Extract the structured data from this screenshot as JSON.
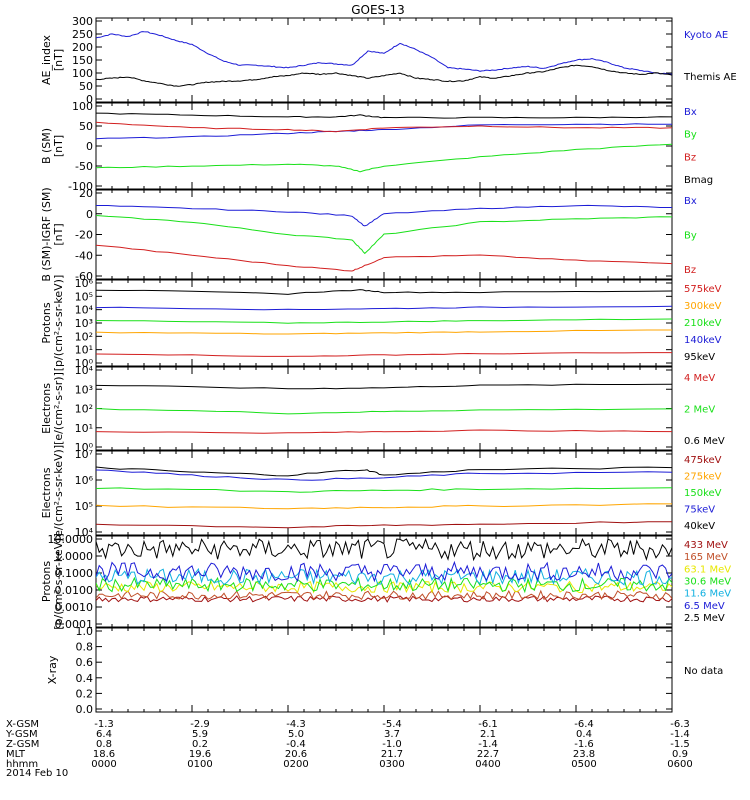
{
  "title": "GOES-13",
  "date_label": "2014 Feb 10",
  "colors": {
    "black": "#000000",
    "blue": "#1c1cd6",
    "green": "#19e019",
    "red": "#d21f1f",
    "orange": "#ffa500",
    "dark_red": "#a01010",
    "yellow": "#e8e800",
    "cyan": "#10b0e0",
    "brown": "#c0502a"
  },
  "chart_data": [
    {
      "type": "line",
      "ylabel": "AE_index\n[nT]",
      "yscale": "linear",
      "ylim": [
        0,
        300
      ],
      "yticks": [
        "0",
        "50",
        "100",
        "150",
        "200",
        "250",
        "300"
      ],
      "series": [
        {
          "name": "Kyoto AE",
          "color": "#1c1cd6",
          "x": [
            0,
            10,
            20,
            30,
            40,
            50,
            60,
            70,
            80,
            90,
            100,
            110,
            120,
            130,
            140,
            150,
            160,
            170,
            180,
            190,
            200,
            210,
            220,
            230,
            240,
            250,
            260,
            270,
            280,
            290,
            300,
            310,
            320,
            330,
            340,
            350,
            360
          ],
          "y": [
            235,
            250,
            240,
            260,
            245,
            225,
            210,
            175,
            145,
            130,
            130,
            125,
            120,
            130,
            140,
            135,
            130,
            185,
            175,
            215,
            190,
            160,
            120,
            115,
            108,
            112,
            120,
            125,
            118,
            135,
            150,
            155,
            140,
            120,
            110,
            100,
            95
          ]
        },
        {
          "name": "Themis AE",
          "color": "#000000",
          "x": [
            0,
            10,
            20,
            30,
            40,
            50,
            60,
            70,
            80,
            90,
            100,
            110,
            120,
            130,
            140,
            150,
            160,
            170,
            180,
            190,
            200,
            210,
            220,
            230,
            240,
            250,
            260,
            270,
            280,
            290,
            300,
            310,
            320,
            330,
            340,
            350,
            360
          ],
          "y": [
            75,
            80,
            85,
            70,
            60,
            50,
            55,
            65,
            68,
            70,
            75,
            85,
            90,
            100,
            95,
            100,
            90,
            80,
            90,
            100,
            80,
            75,
            68,
            70,
            85,
            80,
            90,
            100,
            105,
            120,
            130,
            125,
            110,
            100,
            95,
            100,
            92
          ]
        }
      ]
    },
    {
      "type": "line",
      "ylabel": "B (SM)\n[nT]",
      "yscale": "linear",
      "ylim": [
        -110,
        110
      ],
      "yticks": [
        "-100",
        "-50",
        "0",
        "50",
        "100"
      ],
      "series": [
        {
          "name": "Bx",
          "color": "#1c1cd6",
          "x": [
            0,
            60,
            120,
            150,
            180,
            240,
            300,
            360
          ],
          "y": [
            20,
            25,
            35,
            40,
            45,
            58,
            60,
            60
          ]
        },
        {
          "name": "By",
          "color": "#19e019",
          "x": [
            0,
            60,
            120,
            150,
            165,
            180,
            240,
            300,
            360
          ],
          "y": [
            -60,
            -55,
            -50,
            -55,
            -70,
            -55,
            -30,
            -10,
            5
          ]
        },
        {
          "name": "Bz",
          "color": "#d21f1f",
          "x": [
            0,
            60,
            120,
            150,
            180,
            240,
            300,
            360
          ],
          "y": [
            65,
            50,
            45,
            40,
            50,
            55,
            50,
            50
          ]
        },
        {
          "name": "Bmag",
          "color": "#000000",
          "x": [
            0,
            60,
            120,
            150,
            165,
            180,
            240,
            300,
            360
          ],
          "y": [
            90,
            85,
            80,
            80,
            85,
            78,
            78,
            78,
            80
          ]
        }
      ]
    },
    {
      "type": "line",
      "ylabel": "B (SM)-IGRF (SM)\n[nT]",
      "yscale": "linear",
      "ylim": [
        -60,
        20
      ],
      "yticks": [
        "-60",
        "-40",
        "-20",
        "0",
        "20"
      ],
      "series": [
        {
          "name": "Bx",
          "color": "#1c1cd6",
          "x": [
            0,
            60,
            120,
            160,
            168,
            180,
            240,
            300,
            360
          ],
          "y": [
            8,
            5,
            2,
            -2,
            -12,
            0,
            5,
            8,
            6
          ]
        },
        {
          "name": "By",
          "color": "#19e019",
          "x": [
            0,
            60,
            120,
            160,
            168,
            180,
            240,
            300,
            360
          ],
          "y": [
            -2,
            -8,
            -20,
            -25,
            -38,
            -20,
            -8,
            -5,
            -3
          ]
        },
        {
          "name": "Bz",
          "color": "#d21f1f",
          "x": [
            0,
            60,
            120,
            160,
            168,
            180,
            240,
            300,
            360
          ],
          "y": [
            -30,
            -40,
            -50,
            -55,
            -50,
            -42,
            -40,
            -45,
            -48
          ]
        }
      ]
    },
    {
      "type": "line",
      "ylabel": "Protons\n[p/(cm²-s-sr-keV)]",
      "yscale": "log",
      "ylim": [
        1,
        1000000
      ],
      "yticks": [
        "10⁰",
        "10¹",
        "10²",
        "10³",
        "10⁴",
        "10⁵",
        "10⁶"
      ],
      "series": [
        {
          "name": "575keV",
          "color": "#d21f1f",
          "x": [
            0,
            120,
            180,
            240,
            360
          ],
          "y": [
            5,
            3,
            4,
            5,
            6
          ]
        },
        {
          "name": "300keV",
          "color": "#ffa500",
          "x": [
            0,
            120,
            180,
            240,
            360
          ],
          "y": [
            200,
            150,
            180,
            220,
            300
          ]
        },
        {
          "name": "210keV",
          "color": "#19e019",
          "x": [
            0,
            120,
            180,
            240,
            360
          ],
          "y": [
            1500,
            1000,
            1200,
            1500,
            2000
          ]
        },
        {
          "name": "140keV",
          "color": "#1c1cd6",
          "x": [
            0,
            120,
            180,
            240,
            360
          ],
          "y": [
            15000,
            10000,
            12000,
            15000,
            18000
          ]
        },
        {
          "name": "95keV",
          "color": "#000000",
          "x": [
            0,
            120,
            165,
            180,
            240,
            360
          ],
          "y": [
            300000,
            150000,
            300000,
            200000,
            200000,
            250000
          ]
        }
      ]
    },
    {
      "type": "line",
      "ylabel": "Electrons\n[e/(cm²-s-sr)]",
      "yscale": "log",
      "ylim": [
        1,
        100000
      ],
      "yticks": [
        "10⁰",
        "10¹",
        "10²",
        "10³",
        "10⁴"
      ],
      "series": [
        {
          "name": "4 MeV",
          "color": "#d21f1f",
          "x": [
            0,
            120,
            180,
            240,
            360
          ],
          "y": [
            10,
            8,
            10,
            12,
            10
          ]
        },
        {
          "name": "2 MeV",
          "color": "#19e019",
          "x": [
            0,
            120,
            180,
            240,
            360
          ],
          "y": [
            300,
            150,
            200,
            250,
            300
          ]
        },
        {
          "name": "0.6 MeV",
          "color": "#000000",
          "x": [
            0,
            120,
            180,
            240,
            360
          ],
          "y": [
            10000,
            6000,
            7000,
            10000,
            12000
          ]
        }
      ]
    },
    {
      "type": "line",
      "ylabel": "Electrons\n[e/(cm²-s-sr-keV)]",
      "yscale": "log",
      "ylim": [
        10000,
        10000000
      ],
      "yticks": [
        "10⁴",
        "10⁵",
        "10⁶",
        "10⁷"
      ],
      "series": [
        {
          "name": "475keV",
          "color": "#a01010",
          "x": [
            0,
            120,
            180,
            240,
            360
          ],
          "y": [
            20000,
            15000,
            18000,
            20000,
            25000
          ]
        },
        {
          "name": "275keV",
          "color": "#ffa500",
          "x": [
            0,
            120,
            180,
            240,
            360
          ],
          "y": [
            100000,
            80000,
            90000,
            100000,
            120000
          ]
        },
        {
          "name": "150keV",
          "color": "#19e019",
          "x": [
            0,
            120,
            180,
            240,
            360
          ],
          "y": [
            500000,
            350000,
            400000,
            450000,
            500000
          ]
        },
        {
          "name": "75keV",
          "color": "#1c1cd6",
          "x": [
            0,
            60,
            120,
            180,
            240,
            360
          ],
          "y": [
            2500000,
            1500000,
            1000000,
            1200000,
            1800000,
            2000000
          ]
        },
        {
          "name": "40keV",
          "color": "#000000",
          "x": [
            0,
            60,
            120,
            168,
            180,
            240,
            360
          ],
          "y": [
            3000000,
            2000000,
            1500000,
            2500000,
            1500000,
            2500000,
            3000000
          ]
        }
      ]
    },
    {
      "type": "line",
      "ylabel": "Protons\n[p/(cm²-s-sr-keV)]",
      "yscale": "log",
      "ylim": [
        0.0001,
        10
      ],
      "yticks": [
        "0.0001",
        "0.0010",
        "0.0100",
        "0.1000",
        "1.0000",
        "10.0000"
      ],
      "series": [
        {
          "name": "433 MeV",
          "color": "#a01010",
          "level": 0.003
        },
        {
          "name": "165 MeV",
          "color": "#c0502a",
          "level": 0.005
        },
        {
          "name": "63.1 MeV",
          "color": "#e8e800",
          "level": 0.015
        },
        {
          "name": "30.6 MeV",
          "color": "#19e019",
          "level": 0.02
        },
        {
          "name": "11.6 MeV",
          "color": "#10b0e0",
          "level": 0.06
        },
        {
          "name": "6.5 MeV",
          "color": "#1c1cd6",
          "level": 0.12
        },
        {
          "name": "2.5 MeV",
          "color": "#000000",
          "level": 2.5
        }
      ]
    },
    {
      "type": "line",
      "ylabel": "X-ray",
      "yscale": "linear",
      "ylim": [
        0,
        1
      ],
      "yticks": [
        "0.0",
        "0.2",
        "0.4",
        "0.6",
        "0.8",
        "1.0"
      ],
      "note": "No data",
      "series": []
    }
  ],
  "ephemeris": {
    "labels": [
      "X-GSM",
      "Y-GSM",
      "Z-GSM",
      "MLT",
      "hhmm"
    ],
    "columns": [
      [
        "-1.3",
        "6.4",
        "0.8",
        "18.6",
        "0000"
      ],
      [
        "-2.9",
        "5.9",
        "0.2",
        "19.6",
        "0100"
      ],
      [
        "-4.3",
        "5.0",
        "-0.4",
        "20.6",
        "0200"
      ],
      [
        "-5.4",
        "3.7",
        "-1.0",
        "21.7",
        "0300"
      ],
      [
        "-6.1",
        "2.1",
        "-1.4",
        "22.7",
        "0400"
      ],
      [
        "-6.4",
        "0.4",
        "-1.6",
        "23.8",
        "0500"
      ],
      [
        "-6.3",
        "-1.4",
        "-1.5",
        "0.9",
        "0600"
      ]
    ]
  }
}
